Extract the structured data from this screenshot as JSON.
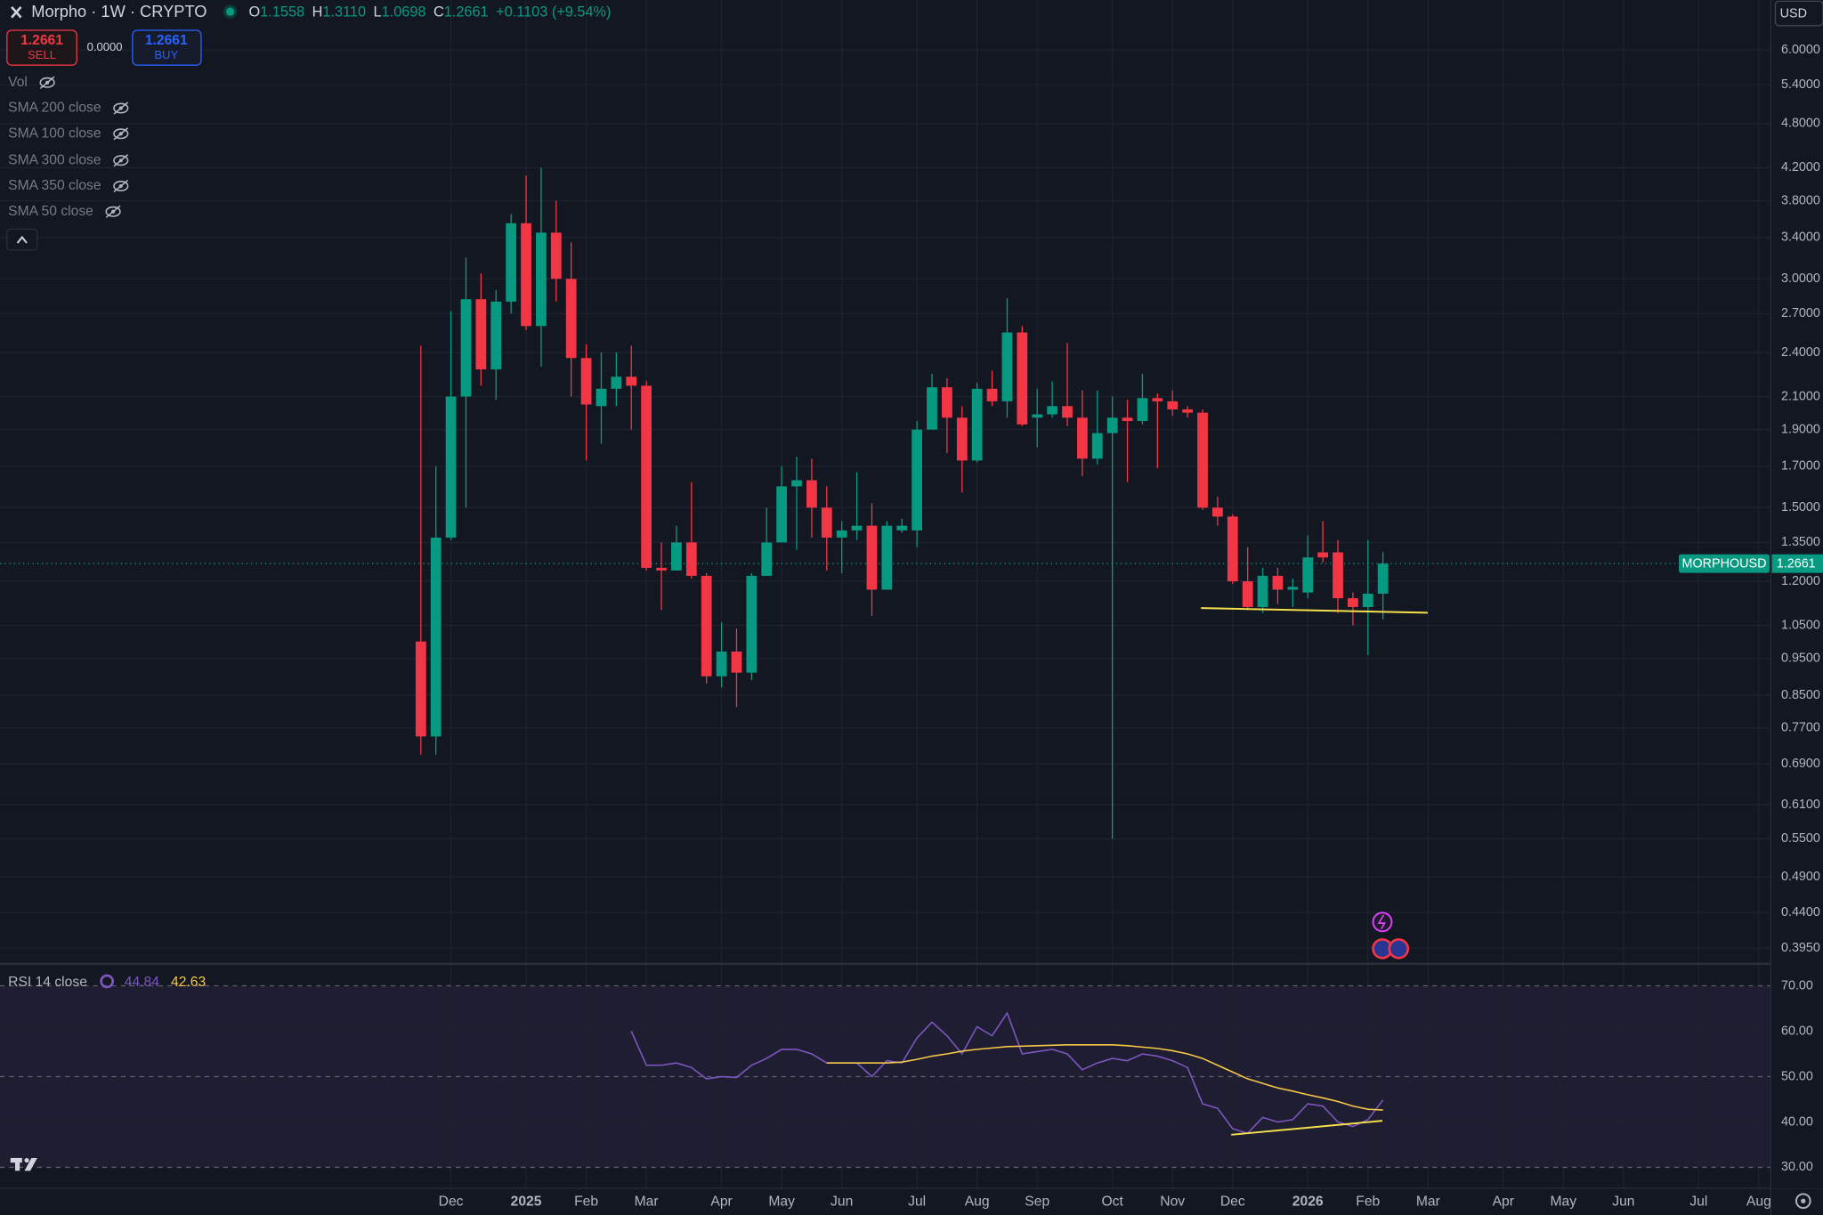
{
  "header": {
    "symbol": "Morpho · 1W · CRYPTO",
    "ohlc": [
      {
        "key": "O",
        "value": "1.1558"
      },
      {
        "key": "H",
        "value": "1.3110"
      },
      {
        "key": "L",
        "value": "1.0698"
      },
      {
        "key": "C",
        "value": "1.2661"
      }
    ],
    "change": "+0.1103 (+9.54%)"
  },
  "trade": {
    "sell_price": "1.2661",
    "sell": "SELL",
    "spread": "0.0000",
    "buy_price": "1.2661",
    "buy": "BUY"
  },
  "indicators": [
    "Vol",
    "SMA 200 close",
    "SMA 100 close",
    "SMA 300 close",
    "SMA 350 close",
    "SMA 50 close"
  ],
  "currency": "USD",
  "price_label": {
    "symbol": "MORPHOUSD",
    "price": "1.2661"
  },
  "chart_data": [
    {
      "type": "candlestick",
      "log": true,
      "grid": true,
      "up_color": "#089981",
      "down_color": "#f23645",
      "categories": [
        null,
        null,
        "Dec",
        null,
        null,
        null,
        null,
        "2025",
        null,
        null,
        null,
        "Feb",
        null,
        null,
        null,
        "Mar",
        null,
        null,
        null,
        null,
        "Apr",
        null,
        null,
        null,
        "May",
        null,
        null,
        null,
        "Jun",
        null,
        null,
        null,
        null,
        "Jul",
        null,
        null,
        null,
        "Aug",
        null,
        null,
        null,
        "Sep",
        null,
        null,
        null,
        null,
        "Oct",
        null,
        null,
        null,
        "Nov",
        null,
        null,
        null,
        "Dec",
        null,
        null,
        null,
        null,
        "2026",
        null,
        null,
        null,
        "Feb",
        null,
        null,
        null,
        "Mar",
        null,
        null,
        null,
        null,
        "Apr",
        null,
        null,
        null,
        "May",
        null,
        null,
        null,
        "Jun",
        null,
        null,
        null,
        null,
        "Jul",
        null,
        null,
        null,
        "Aug"
      ],
      "open": [
        1.0,
        0.75,
        1.37,
        2.1,
        2.82,
        2.28,
        2.8,
        3.55,
        2.6,
        3.45,
        3.0,
        2.36,
        2.04,
        2.15,
        2.23,
        2.17,
        1.25,
        1.24,
        1.35,
        1.22,
        0.9,
        0.97,
        0.91,
        1.22,
        1.35,
        1.6,
        1.63,
        1.5,
        1.37,
        1.4,
        1.42,
        1.17,
        1.4,
        1.4,
        1.9,
        2.16,
        1.97,
        1.73,
        2.15,
        2.07,
        2.55,
        1.97,
        1.99,
        2.04,
        1.97,
        1.74,
        1.88,
        1.97,
        1.95,
        2.09,
        2.07,
        2.02,
        2.0,
        1.5,
        1.46,
        1.2,
        1.11,
        1.22,
        1.17,
        1.16,
        1.31,
        1.31,
        1.14,
        1.11,
        1.1558,
        null,
        null,
        null,
        null,
        null,
        null,
        null,
        null,
        null,
        null,
        null,
        null,
        null,
        null,
        null,
        null,
        null,
        null,
        null,
        null,
        null,
        null,
        null,
        null,
        null
      ],
      "high": [
        2.45,
        1.7,
        2.72,
        3.2,
        3.05,
        2.9,
        3.65,
        4.1,
        4.2,
        3.8,
        3.35,
        2.46,
        2.4,
        2.4,
        2.45,
        2.2,
        1.35,
        1.42,
        1.62,
        1.23,
        1.06,
        1.04,
        1.23,
        1.5,
        1.7,
        1.75,
        1.74,
        1.6,
        1.44,
        1.67,
        1.52,
        1.44,
        1.45,
        1.95,
        2.25,
        2.22,
        2.04,
        2.19,
        2.27,
        2.83,
        2.6,
        2.15,
        2.2,
        2.47,
        2.14,
        2.14,
        2.1,
        2.08,
        2.25,
        2.12,
        2.14,
        2.04,
        2.02,
        1.55,
        1.47,
        1.33,
        1.25,
        1.25,
        1.21,
        1.38,
        1.44,
        1.36,
        1.16,
        1.36,
        1.311,
        null,
        null,
        null,
        null,
        null,
        null,
        null,
        null,
        null,
        null,
        null,
        null,
        null,
        null,
        null,
        null,
        null,
        null,
        null,
        null,
        null,
        null,
        null,
        null,
        null
      ],
      "low": [
        0.71,
        0.71,
        1.36,
        1.5,
        2.17,
        2.08,
        2.7,
        2.57,
        2.3,
        2.8,
        2.1,
        1.73,
        1.82,
        2.04,
        1.9,
        1.24,
        1.1,
        1.24,
        1.21,
        0.88,
        0.87,
        0.82,
        0.89,
        1.22,
        1.35,
        1.32,
        1.37,
        1.24,
        1.23,
        1.36,
        1.08,
        1.17,
        1.39,
        1.33,
        1.9,
        1.77,
        1.57,
        1.72,
        2.04,
        1.97,
        1.92,
        1.8,
        1.97,
        1.92,
        1.65,
        1.71,
        0.55,
        1.62,
        1.93,
        1.69,
        1.98,
        1.97,
        1.49,
        1.42,
        1.19,
        1.1,
        1.09,
        1.12,
        1.11,
        1.14,
        1.27,
        1.09,
        1.05,
        0.96,
        1.0698,
        null,
        null,
        null,
        null,
        null,
        null,
        null,
        null,
        null,
        null,
        null,
        null,
        null,
        null,
        null,
        null,
        null,
        null,
        null,
        null,
        null,
        null,
        null,
        null,
        null
      ],
      "close": [
        0.75,
        1.37,
        2.1,
        2.82,
        2.28,
        2.8,
        3.55,
        2.6,
        3.45,
        3.0,
        2.36,
        2.05,
        2.15,
        2.23,
        2.17,
        1.25,
        1.24,
        1.35,
        1.22,
        0.9,
        0.97,
        0.91,
        1.22,
        1.35,
        1.6,
        1.63,
        1.5,
        1.37,
        1.4,
        1.42,
        1.17,
        1.42,
        1.42,
        1.9,
        2.16,
        1.97,
        1.73,
        2.15,
        2.07,
        2.55,
        1.93,
        1.99,
        2.04,
        1.97,
        1.74,
        1.88,
        1.97,
        1.95,
        2.09,
        2.07,
        2.02,
        2.0,
        1.5,
        1.46,
        1.2,
        1.11,
        1.22,
        1.17,
        1.18,
        1.29,
        1.29,
        1.14,
        1.11,
        1.1558,
        1.2661,
        null,
        null,
        null,
        null,
        null,
        null,
        null,
        null,
        null,
        null,
        null,
        null,
        null,
        null,
        null,
        null,
        null,
        null,
        null,
        null,
        null,
        null,
        null,
        null,
        null
      ],
      "ylim": [
        0.378,
        6.98
      ],
      "yticks": [
        {
          "value": 6,
          "label": "6.0000"
        },
        {
          "value": 5.4,
          "label": "5.4000"
        },
        {
          "value": 4.8,
          "label": "4.8000"
        },
        {
          "value": 4.2,
          "label": "4.2000"
        },
        {
          "value": 3.8,
          "label": "3.8000"
        },
        {
          "value": 3.4,
          "label": "3.4000"
        },
        {
          "value": 3,
          "label": "3.0000"
        },
        {
          "value": 2.7,
          "label": "2.7000"
        },
        {
          "value": 2.4,
          "label": "2.4000"
        },
        {
          "value": 2.1,
          "label": "2.1000"
        },
        {
          "value": 1.9,
          "label": "1.9000"
        },
        {
          "value": 1.7,
          "label": "1.7000"
        },
        {
          "value": 1.5,
          "label": "1.5000"
        },
        {
          "value": 1.35,
          "label": "1.3500"
        },
        {
          "value": 1.2,
          "label": "1.2000"
        },
        {
          "value": 1.05,
          "label": "1.0500"
        },
        {
          "value": 0.95,
          "label": "0.9500"
        },
        {
          "value": 0.85,
          "label": "0.8500"
        },
        {
          "value": 0.77,
          "label": "0.7700"
        },
        {
          "value": 0.69,
          "label": "0.6900"
        },
        {
          "value": 0.61,
          "label": "0.6100"
        },
        {
          "value": 0.55,
          "label": "0.5500"
        },
        {
          "value": 0.49,
          "label": "0.4900"
        },
        {
          "value": 0.44,
          "label": "0.4400"
        },
        {
          "value": 0.395,
          "label": "0.3950"
        }
      ]
    },
    {
      "type": "line",
      "title": "RSI 14 close",
      "grid": true,
      "series": [
        {
          "color": "#7e57c2",
          "values": [
            null,
            null,
            null,
            null,
            null,
            null,
            null,
            null,
            null,
            null,
            null,
            null,
            null,
            null,
            60,
            52.5,
            52.5,
            53,
            52,
            49.5,
            50,
            49.8,
            52.5,
            54,
            56,
            56,
            55,
            53,
            53,
            53,
            50,
            53.5,
            53,
            58.5,
            62,
            59,
            55,
            61,
            59,
            64,
            55,
            55.5,
            56,
            55,
            51.5,
            53,
            54,
            53.5,
            55,
            54.5,
            53.5,
            52,
            44,
            43,
            38.5,
            37.5,
            41,
            40,
            40.5,
            44,
            43.5,
            40,
            39,
            40.5,
            44.84,
            null,
            null,
            null,
            null,
            null,
            null,
            null,
            null,
            null,
            null,
            null,
            null,
            null,
            null,
            null,
            null,
            null,
            null,
            null,
            null,
            null,
            null,
            null,
            null,
            null
          ]
        },
        {
          "color": "#f7c948",
          "values": [
            null,
            null,
            null,
            null,
            null,
            null,
            null,
            null,
            null,
            null,
            null,
            null,
            null,
            null,
            null,
            null,
            null,
            null,
            null,
            null,
            null,
            null,
            null,
            null,
            null,
            null,
            null,
            53,
            53,
            53,
            53,
            53,
            53.2,
            53.8,
            54.5,
            55,
            55.6,
            56,
            56.3,
            56.6,
            56.7,
            56.8,
            56.9,
            57,
            57,
            57,
            57,
            56.8,
            56.5,
            56.2,
            55.7,
            55,
            54,
            52.5,
            51,
            49.5,
            48.5,
            47.5,
            46.8,
            46,
            45.3,
            44.5,
            43.5,
            42.8,
            42.63,
            null,
            null,
            null,
            null,
            null,
            null,
            null,
            null,
            null,
            null,
            null,
            null,
            null,
            null,
            null,
            null,
            null,
            null,
            null,
            null,
            null,
            null,
            null,
            null,
            null
          ]
        }
      ],
      "ylim": [
        25.4,
        75.1
      ],
      "yticks": [
        {
          "value": 70,
          "label": "70.00"
        },
        {
          "value": 60,
          "label": "60.00"
        },
        {
          "value": 50,
          "label": "50.00"
        },
        {
          "value": 40,
          "label": "40.00"
        },
        {
          "value": 30,
          "label": "30.00"
        }
      ]
    }
  ]
}
